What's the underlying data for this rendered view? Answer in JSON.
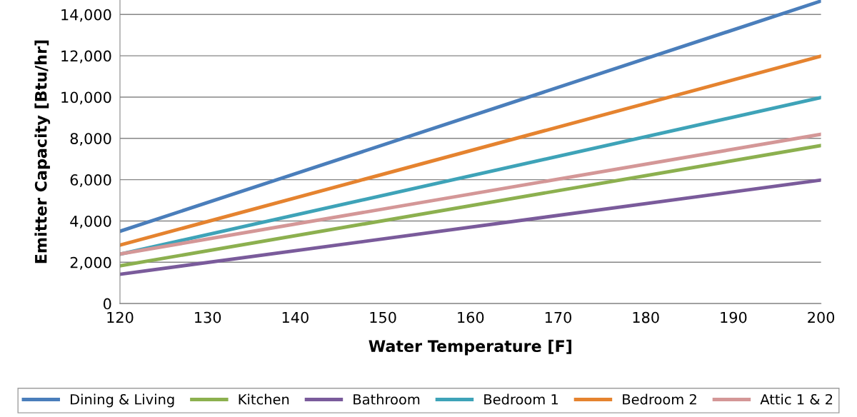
{
  "chart_data": {
    "type": "line",
    "xlabel": "Water Temperature [F]",
    "ylabel": "Emitter Capacity [Btu/hr]",
    "x": [
      120,
      200
    ],
    "series": [
      {
        "name": "Dining & Living",
        "color": "#4a7ebb",
        "values": [
          3500,
          14650
        ]
      },
      {
        "name": "Kitchen",
        "color": "#8cb04f",
        "values": [
          1830,
          7650
        ]
      },
      {
        "name": "Bathroom",
        "color": "#7a5b9b",
        "values": [
          1420,
          5980
        ]
      },
      {
        "name": "Bedroom 1",
        "color": "#3ea3b8",
        "values": [
          2390,
          9980
        ]
      },
      {
        "name": "Bedroom 2",
        "color": "#e5832f",
        "values": [
          2830,
          11980
        ]
      },
      {
        "name": "Attic 1 & 2",
        "color": "#d49797",
        "values": [
          2400,
          8200
        ]
      }
    ],
    "xlim": [
      120,
      200
    ],
    "xticks": [
      120,
      130,
      140,
      150,
      160,
      170,
      180,
      190,
      200
    ],
    "ylim": [
      0,
      14700
    ],
    "yticks": [
      {
        "value": 0,
        "label": "0"
      },
      {
        "value": 2000,
        "label": "2,000"
      },
      {
        "value": 4000,
        "label": "4,000"
      },
      {
        "value": 6000,
        "label": "6,000"
      },
      {
        "value": 8000,
        "label": "8,000"
      },
      {
        "value": 10000,
        "label": "10,000"
      },
      {
        "value": 12000,
        "label": "12,000"
      },
      {
        "value": 14000,
        "label": "14,000"
      }
    ],
    "grid": "y",
    "legend": "bottom",
    "marker": "none",
    "line_style": "solid"
  }
}
